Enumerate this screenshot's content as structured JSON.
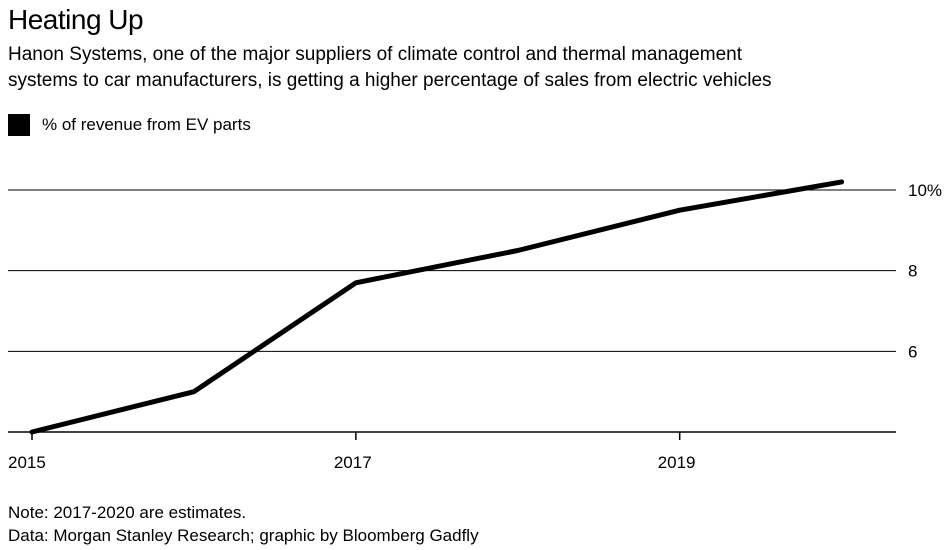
{
  "title": "Heating Up",
  "subtitle_line1": "Hanon Systems, one of the major suppliers of climate control and thermal management",
  "subtitle_line2": "systems to car manufacturers, is getting a higher percentage of sales from electric vehicles",
  "note": "Note: 2017-2020 are estimates.",
  "source": "Data: Morgan Stanley Research; graphic by Bloomberg Gadfly",
  "chart_data": {
    "type": "line",
    "x": [
      2015,
      2016,
      2017,
      2018,
      2019,
      2020
    ],
    "series": [
      {
        "name": "% of revenue from EV parts",
        "values": [
          4.0,
          5.0,
          7.7,
          8.5,
          9.5,
          10.2
        ],
        "color": "#000000"
      }
    ],
    "y_ticks": [
      "6",
      "8",
      "10%"
    ],
    "y_tick_values": [
      6,
      8,
      10
    ],
    "x_ticks": [
      "2015",
      "2017",
      "2019"
    ],
    "x_tick_values": [
      2015,
      2017,
      2019
    ],
    "ylim": [
      4,
      10.5
    ],
    "xlim": [
      2015,
      2020.2
    ],
    "grid": true,
    "legend_position": "top-left",
    "xlabel": "",
    "ylabel": ""
  }
}
